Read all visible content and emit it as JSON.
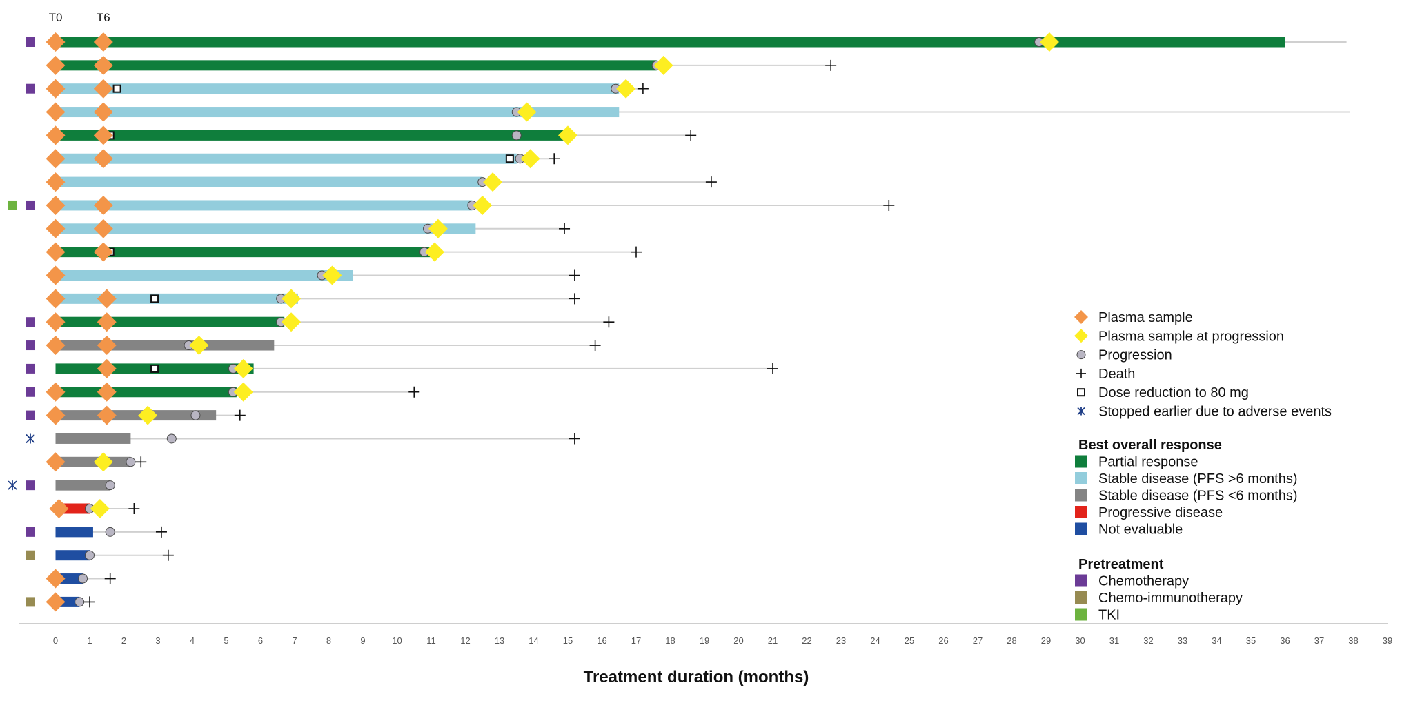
{
  "chart_data": {
    "type": "swimmer",
    "xlabel": "Treatment duration (months)",
    "xlim": [
      -1,
      39
    ],
    "xticks": [
      0,
      1,
      2,
      3,
      4,
      5,
      6,
      7,
      8,
      9,
      10,
      11,
      12,
      13,
      14,
      15,
      16,
      17,
      18,
      19,
      20,
      21,
      22,
      23,
      24,
      25,
      26,
      27,
      28,
      29,
      30,
      31,
      32,
      33,
      34,
      35,
      36,
      37,
      38,
      39
    ],
    "top_markers": [
      {
        "label": "T0",
        "x": 0
      },
      {
        "label": "T6",
        "x": 1.4
      }
    ],
    "colors": {
      "PR": "#0f7e3c",
      "SD_long": "#93cddc",
      "SD_short": "#848484",
      "PD": "#e2231a",
      "NE": "#1f4ea1",
      "plasma": "#f39549",
      "plasma_prog": "#fdee21",
      "progression": "#b9b6c3",
      "chemo": "#6b3b96",
      "chemo_immuno": "#978b52",
      "tki": "#6db33f",
      "ae": "#1f3e87",
      "followup": "#d0d0d0"
    },
    "patients": [
      {
        "response": "PR",
        "duration": 36.0,
        "followup": 37.8,
        "pretreatment": [
          "chemo"
        ],
        "plasma": [
          0,
          1.4
        ],
        "plasma_prog": 29.1,
        "progression": 28.8,
        "death": null,
        "dose_reduction": null,
        "ae": false
      },
      {
        "response": "PR",
        "duration": 17.6,
        "followup": 22.7,
        "pretreatment": [],
        "plasma": [
          0,
          1.4
        ],
        "plasma_prog": 17.8,
        "progression": 17.6,
        "death": 22.7,
        "dose_reduction": null,
        "ae": false
      },
      {
        "response": "SD_long",
        "duration": 16.5,
        "followup": 17.2,
        "pretreatment": [
          "chemo"
        ],
        "plasma": [
          0,
          1.4
        ],
        "plasma_prog": 16.7,
        "progression": 16.4,
        "death": 17.2,
        "dose_reduction": 1.8,
        "ae": false
      },
      {
        "response": "SD_long",
        "duration": 16.5,
        "followup": 37.9,
        "pretreatment": [],
        "plasma": [
          0,
          1.4
        ],
        "plasma_prog": 13.8,
        "progression": 13.5,
        "death": null,
        "dose_reduction": null,
        "ae": false
      },
      {
        "response": "PR",
        "duration": 15.0,
        "followup": 18.6,
        "pretreatment": [],
        "plasma": [
          0,
          1.4
        ],
        "plasma_prog": 15.0,
        "progression": 13.5,
        "death": 18.6,
        "dose_reduction": 1.6,
        "ae": false
      },
      {
        "response": "SD_long",
        "duration": 13.5,
        "followup": 14.6,
        "pretreatment": [],
        "plasma": [
          0,
          1.4
        ],
        "plasma_prog": 13.9,
        "progression": 13.6,
        "death": 14.6,
        "dose_reduction": 13.3,
        "ae": false
      },
      {
        "response": "SD_long",
        "duration": 12.5,
        "followup": 19.2,
        "pretreatment": [],
        "plasma": [
          0
        ],
        "plasma_prog": 12.8,
        "progression": 12.5,
        "death": 19.2,
        "dose_reduction": null,
        "ae": false
      },
      {
        "response": "SD_long",
        "duration": 12.2,
        "followup": 24.4,
        "pretreatment": [
          "tki",
          "chemo"
        ],
        "plasma": [
          0,
          1.4
        ],
        "plasma_prog": 12.5,
        "progression": 12.2,
        "death": 24.4,
        "dose_reduction": null,
        "ae": false
      },
      {
        "response": "SD_long",
        "duration": 12.3,
        "followup": 14.9,
        "pretreatment": [],
        "plasma": [
          0,
          1.4
        ],
        "plasma_prog": 11.2,
        "progression": 10.9,
        "death": 14.9,
        "dose_reduction": null,
        "ae": false
      },
      {
        "response": "PR",
        "duration": 11.0,
        "followup": 17.0,
        "pretreatment": [],
        "plasma": [
          0,
          1.4
        ],
        "plasma_prog": 11.1,
        "progression": 10.8,
        "death": 17.0,
        "dose_reduction": 1.6,
        "ae": false
      },
      {
        "response": "SD_long",
        "duration": 8.7,
        "followup": 15.2,
        "pretreatment": [],
        "plasma": [
          0
        ],
        "plasma_prog": 8.1,
        "progression": 7.8,
        "death": 15.2,
        "dose_reduction": null,
        "ae": false
      },
      {
        "response": "SD_long",
        "duration": 7.1,
        "followup": 15.2,
        "pretreatment": [],
        "plasma": [
          0,
          1.5
        ],
        "plasma_prog": 6.9,
        "progression": 6.6,
        "death": 15.2,
        "dose_reduction": 2.9,
        "ae": false
      },
      {
        "response": "PR",
        "duration": 6.7,
        "followup": 16.2,
        "pretreatment": [
          "chemo"
        ],
        "plasma": [
          0,
          1.5
        ],
        "plasma_prog": 6.9,
        "progression": 6.6,
        "death": 16.2,
        "dose_reduction": null,
        "ae": false
      },
      {
        "response": "SD_short",
        "duration": 6.4,
        "followup": 15.8,
        "pretreatment": [
          "chemo"
        ],
        "plasma": [
          0,
          1.5
        ],
        "plasma_prog": 4.2,
        "progression": 3.9,
        "death": 15.8,
        "dose_reduction": null,
        "ae": false
      },
      {
        "response": "PR",
        "duration": 5.8,
        "followup": 21.0,
        "pretreatment": [
          "chemo"
        ],
        "plasma": [
          1.5
        ],
        "plasma_prog": 5.5,
        "progression": 5.2,
        "death": 21.0,
        "dose_reduction": 2.9,
        "ae": false
      },
      {
        "response": "PR",
        "duration": 5.3,
        "followup": 10.5,
        "pretreatment": [
          "chemo"
        ],
        "plasma": [
          0,
          1.5
        ],
        "plasma_prog": 5.5,
        "progression": 5.2,
        "death": 10.5,
        "dose_reduction": null,
        "ae": false
      },
      {
        "response": "SD_short",
        "duration": 4.7,
        "followup": 5.4,
        "pretreatment": [
          "chemo"
        ],
        "plasma": [
          0,
          1.5
        ],
        "plasma_prog": 2.7,
        "progression": 4.1,
        "death": 5.4,
        "dose_reduction": null,
        "ae": false
      },
      {
        "response": "SD_short",
        "duration": 2.2,
        "followup": 15.2,
        "pretreatment": [],
        "plasma": [],
        "plasma_prog": null,
        "progression": 3.4,
        "death": 15.2,
        "dose_reduction": null,
        "ae": true
      },
      {
        "response": "SD_short",
        "duration": 2.2,
        "followup": 2.5,
        "pretreatment": [],
        "plasma": [
          0
        ],
        "plasma_prog": 1.4,
        "progression": 2.2,
        "death": 2.5,
        "dose_reduction": null,
        "ae": false
      },
      {
        "response": "SD_short",
        "duration": 1.6,
        "followup": 1.6,
        "pretreatment": [
          "chemo"
        ],
        "plasma": [],
        "plasma_prog": null,
        "progression": 1.6,
        "death": null,
        "dose_reduction": null,
        "ae": true
      },
      {
        "response": "PD",
        "duration": 1.0,
        "followup": 2.3,
        "pretreatment": [],
        "plasma": [
          0.1
        ],
        "plasma_prog": 1.3,
        "progression": 1.0,
        "death": 2.3,
        "dose_reduction": null,
        "ae": false
      },
      {
        "response": "NE",
        "duration": 1.1,
        "followup": 3.1,
        "pretreatment": [
          "chemo"
        ],
        "plasma": [],
        "plasma_prog": null,
        "progression": 1.6,
        "death": 3.1,
        "dose_reduction": null,
        "ae": false
      },
      {
        "response": "NE",
        "duration": 1.0,
        "followup": 3.3,
        "pretreatment": [
          "chemo_immuno"
        ],
        "plasma": [],
        "plasma_prog": null,
        "progression": 1.0,
        "death": 3.3,
        "dose_reduction": null,
        "ae": false
      },
      {
        "response": "NE",
        "duration": 0.8,
        "followup": 1.6,
        "pretreatment": [],
        "plasma": [
          0
        ],
        "plasma_prog": null,
        "progression": 0.8,
        "death": 1.6,
        "dose_reduction": null,
        "ae": false
      },
      {
        "response": "NE",
        "duration": 0.7,
        "followup": 1.0,
        "pretreatment": [
          "chemo_immuno"
        ],
        "plasma": [
          0
        ],
        "plasma_prog": null,
        "progression": 0.7,
        "death": 1.0,
        "dose_reduction": null,
        "ae": false
      }
    ],
    "legend": {
      "symbols": [
        {
          "key": "plasma",
          "label": "Plasma sample"
        },
        {
          "key": "plasma_prog",
          "label": "Plasma sample at progression"
        },
        {
          "key": "progression",
          "label": "Progression"
        },
        {
          "key": "death",
          "label": "Death"
        },
        {
          "key": "dose_reduction",
          "label": "Dose reduction to 80 mg"
        },
        {
          "key": "ae",
          "label": "Stopped earlier due to adverse events"
        }
      ],
      "response_title": "Best overall response",
      "responses": [
        {
          "key": "PR",
          "label": "Partial response"
        },
        {
          "key": "SD_long",
          "label": "Stable disease (PFS >6 months)"
        },
        {
          "key": "SD_short",
          "label": "Stable disease (PFS <6 months)"
        },
        {
          "key": "PD",
          "label": "Progressive disease"
        },
        {
          "key": "NE",
          "label": "Not evaluable"
        }
      ],
      "pretreatment_title": "Pretreatment",
      "pretreatments": [
        {
          "key": "chemo",
          "label": "Chemotherapy"
        },
        {
          "key": "chemo_immuno",
          "label": "Chemo-immunotherapy"
        },
        {
          "key": "tki",
          "label": "TKI"
        }
      ]
    }
  }
}
